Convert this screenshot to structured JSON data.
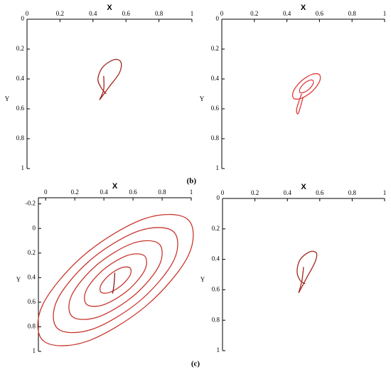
{
  "chart_data": [
    {
      "type": "line",
      "x_label": "X",
      "y_label": "Y",
      "xlim": [
        0,
        1
      ],
      "ylim": [
        0,
        1
      ],
      "xticks": [
        0,
        0.2,
        0.4,
        0.6,
        0.8,
        1
      ],
      "yticks": [
        0,
        0.2,
        0.4,
        0.6,
        0.8,
        1
      ],
      "y_inverted": true,
      "x_axis_top": true,
      "series": [
        {
          "color": "#a0281e",
          "x": [
            0.465,
            0.465,
            0.44
          ],
          "values": [
            0.38,
            0.47,
            0.54
          ]
        },
        {
          "color": "#a0281e",
          "x": [
            0.44,
            0.5,
            0.56,
            0.57,
            0.53,
            0.46,
            0.43,
            0.45,
            0.48
          ],
          "values": [
            0.54,
            0.45,
            0.36,
            0.29,
            0.27,
            0.32,
            0.4,
            0.46,
            0.5
          ]
        }
      ]
    },
    {
      "type": "line",
      "x_label": "X",
      "y_label": "Y",
      "xlim": [
        0,
        1
      ],
      "ylim": [
        0,
        1
      ],
      "xticks": [
        0,
        0.2,
        0.4,
        0.6,
        0.8,
        1
      ],
      "yticks": [
        0,
        0.2,
        0.4,
        0.6,
        0.8,
        1
      ],
      "y_inverted": true,
      "x_axis_top": true,
      "annotation": "(b)",
      "series": [
        {
          "color": "#e03a3a",
          "closed": true,
          "x": [
            0.599,
            0.6,
            0.554,
            0.488,
            0.441,
            0.44,
            0.486,
            0.552
          ],
          "values": [
            0.371,
            0.418,
            0.484,
            0.53,
            0.529,
            0.482,
            0.416,
            0.37
          ]
        },
        {
          "color": "#e03a3a",
          "closed": true,
          "x": [
            0.56,
            0.56,
            0.537,
            0.504,
            0.48,
            0.48,
            0.503,
            0.536
          ],
          "values": [
            0.41,
            0.434,
            0.467,
            0.49,
            0.49,
            0.466,
            0.433,
            0.41
          ]
        },
        {
          "color": "#e03a3a",
          "x": [
            0.49,
            0.46,
            0.47,
            0.5
          ],
          "values": [
            0.5,
            0.6,
            0.63,
            0.52
          ]
        }
      ]
    },
    {
      "type": "line",
      "x_label": "X",
      "y_label": "Y",
      "xlim": [
        -0.05,
        1
      ],
      "ylim": [
        -0.25,
        1
      ],
      "xticks": [
        0,
        0.2,
        0.4,
        0.6,
        0.8,
        1
      ],
      "yticks": [
        -0.2,
        0,
        0.2,
        0.4,
        0.6,
        0.8,
        1
      ],
      "y_inverted": true,
      "x_axis_top": true,
      "annotation": "(c)",
      "series": [
        {
          "color": "#c8362e",
          "closed": true,
          "x": [
            0.975,
            0.98,
            0.69,
            0.28,
            -0.015,
            -0.02,
            0.27,
            0.68
          ],
          "values": [
            -0.075,
            0.22,
            0.63,
            0.92,
            0.915,
            0.62,
            0.21,
            -0.08
          ]
        },
        {
          "color": "#c8362e",
          "closed": true,
          "x": [
            0.876,
            0.88,
            0.648,
            0.32,
            0.084,
            0.08,
            0.312,
            0.64
          ],
          "values": [
            0.024,
            0.26,
            0.588,
            0.82,
            0.816,
            0.58,
            0.252,
            0.02
          ]
        },
        {
          "color": "#c8362e",
          "closed": true,
          "x": [
            0.777,
            0.78,
            0.606,
            0.36,
            0.183,
            0.18,
            0.354,
            0.6
          ],
          "values": [
            0.123,
            0.3,
            0.546,
            0.72,
            0.717,
            0.54,
            0.294,
            0.12
          ]
        },
        {
          "color": "#c8362e",
          "closed": true,
          "x": [
            0.678,
            0.68,
            0.564,
            0.4,
            0.282,
            0.28,
            0.396,
            0.56
          ],
          "values": [
            0.222,
            0.34,
            0.504,
            0.62,
            0.618,
            0.5,
            0.336,
            0.22
          ]
        },
        {
          "color": "#c8362e",
          "closed": true,
          "x": [
            0.579,
            0.58,
            0.522,
            0.44,
            0.381,
            0.38,
            0.438,
            0.52
          ],
          "values": [
            0.321,
            0.38,
            0.462,
            0.52,
            0.519,
            0.46,
            0.378,
            0.32
          ]
        },
        {
          "color": "#8b1a1a",
          "x": [
            0.475,
            0.47,
            0.46
          ],
          "values": [
            0.36,
            0.45,
            0.53
          ]
        }
      ]
    },
    {
      "type": "line",
      "x_label": "X",
      "y_label": "Y",
      "xlim": [
        0,
        1
      ],
      "ylim": [
        0,
        1
      ],
      "xticks": [
        0,
        0.2,
        0.4,
        0.6,
        0.8,
        1
      ],
      "yticks": [
        0,
        0.2,
        0.4,
        0.6,
        0.8,
        1
      ],
      "y_inverted": true,
      "x_axis_top": true,
      "series": [
        {
          "color": "#a0281e",
          "x": [
            0.5,
            0.49,
            0.47
          ],
          "values": [
            0.45,
            0.54,
            0.62
          ]
        },
        {
          "color": "#a0281e",
          "x": [
            0.47,
            0.52,
            0.57,
            0.58,
            0.54,
            0.48,
            0.46,
            0.48,
            0.51
          ],
          "values": [
            0.62,
            0.52,
            0.42,
            0.36,
            0.35,
            0.4,
            0.48,
            0.54,
            0.56
          ]
        }
      ]
    }
  ]
}
